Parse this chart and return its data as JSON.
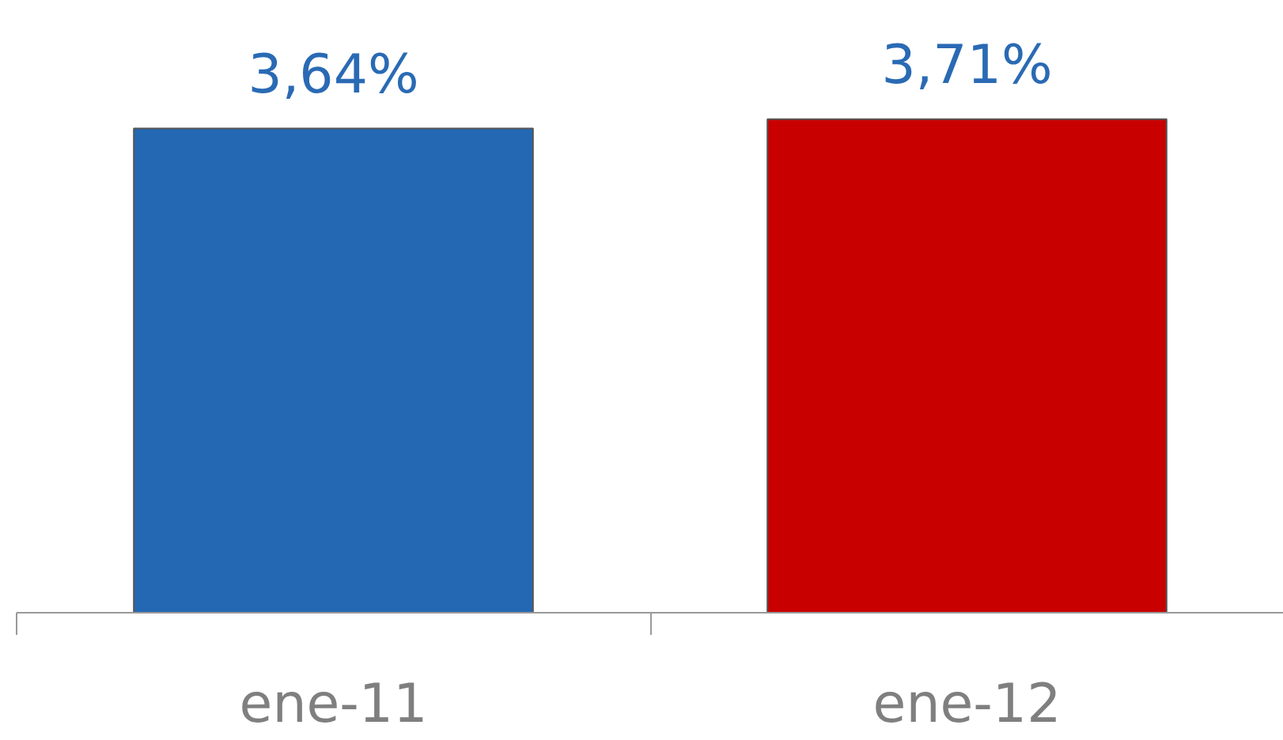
{
  "chart_data": {
    "type": "bar",
    "categories": [
      "ene-11",
      "ene-12"
    ],
    "values": [
      3.64,
      3.71
    ],
    "colors": [
      "#2468b4",
      "#c80000"
    ],
    "value_labels": [
      "3,64%",
      "3,71%"
    ]
  }
}
